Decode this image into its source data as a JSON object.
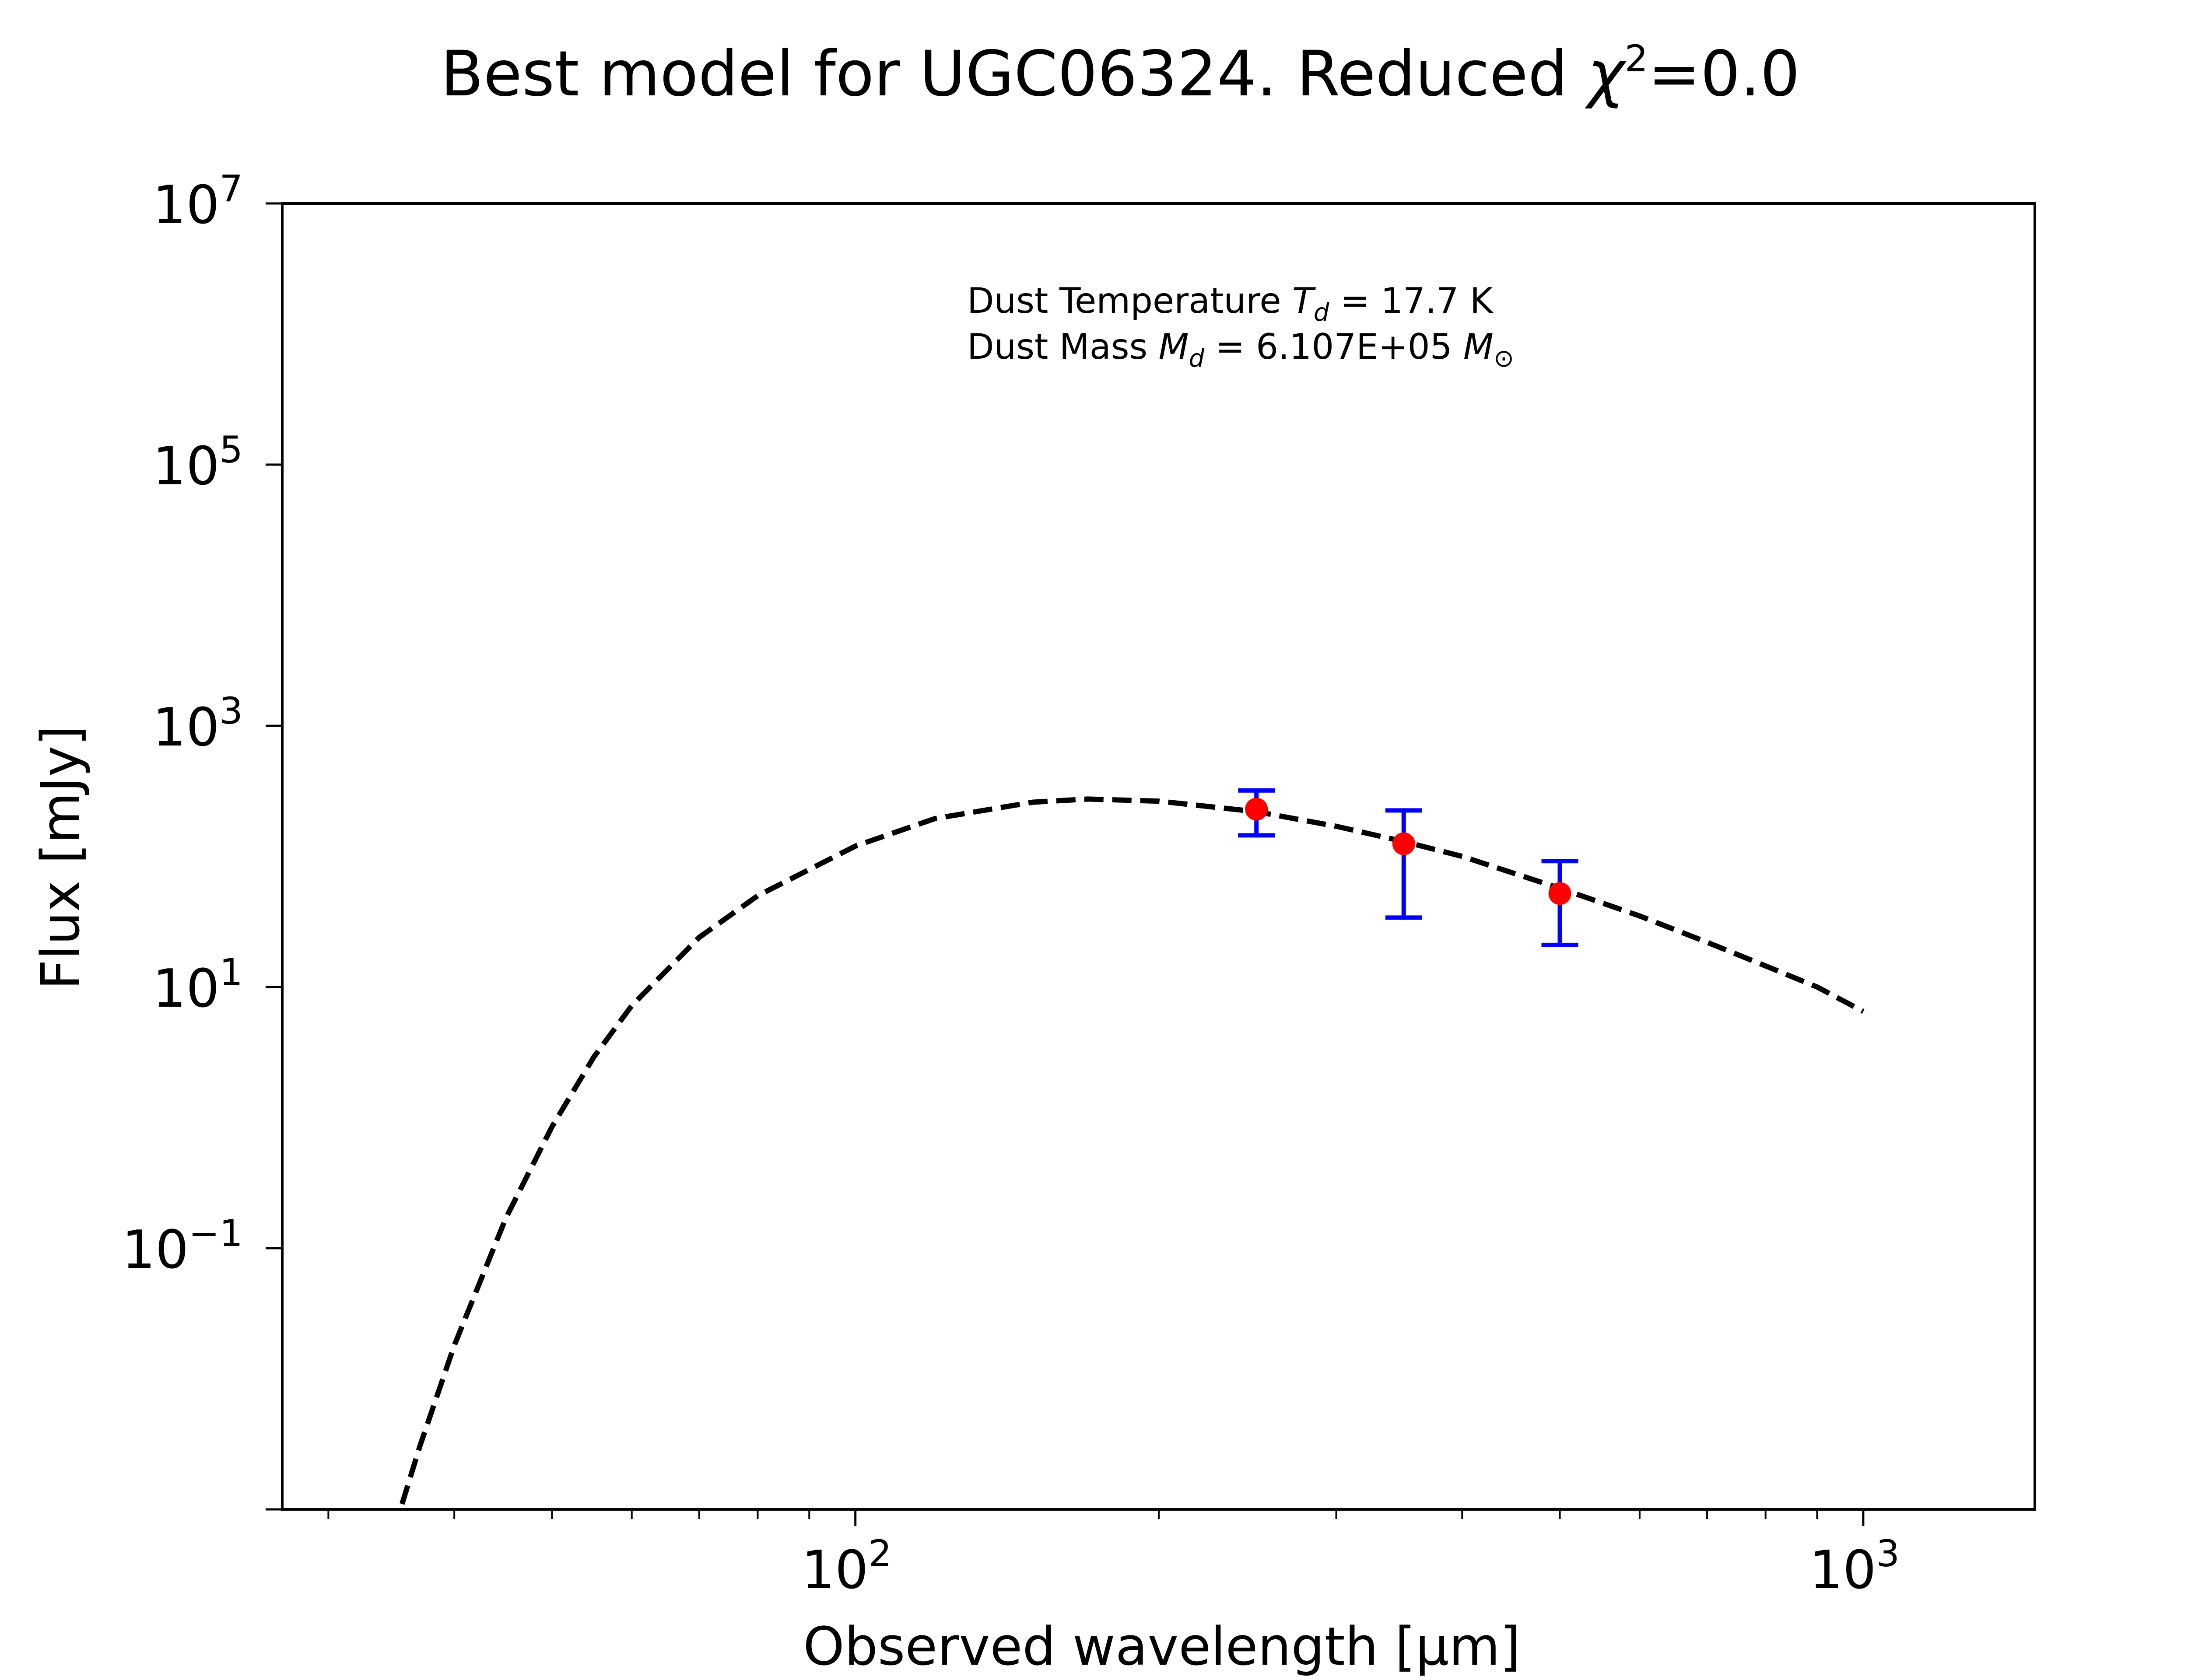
{
  "chart_data": {
    "type": "scatter",
    "title": "Best model for UGC06324. Reduced χ²=0.0",
    "title_parts": {
      "main": "Best model for UGC06324. Reduced ",
      "symbol": "χ",
      "exponent": "2",
      "tail": "=0.0"
    },
    "xlabel": "Observed wavelength [μm]",
    "ylabel": "Flux [mJy]",
    "xscale": "log",
    "yscale": "log",
    "xlim": [
      27,
      1480
    ],
    "ylim": [
      0.001,
      10000000
    ],
    "grid": false,
    "legend": "none",
    "x_ticks": [
      {
        "value": 100,
        "base": "10",
        "exp": "2"
      },
      {
        "value": 1000,
        "base": "10",
        "exp": "3"
      }
    ],
    "y_ticks": [
      {
        "value": 10000000,
        "base": "10",
        "exp": "7"
      },
      {
        "value": 100000,
        "base": "10",
        "exp": "5"
      },
      {
        "value": 1000,
        "base": "10",
        "exp": "3"
      },
      {
        "value": 10,
        "base": "10",
        "exp": "1"
      },
      {
        "value": 0.1,
        "base": "10",
        "exp": "−1"
      },
      {
        "value": 0.001,
        "base": "",
        "exp": ""
      }
    ],
    "annotations": [
      {
        "prefix": "Dust Temperature ",
        "sym": "T",
        "sub": "d",
        "suffix": " = 17.7 K"
      },
      {
        "prefix": "Dust Mass ",
        "sym": "M",
        "sub": "d",
        "suffix": " = 6.107E+05 ",
        "sym2": "M",
        "sub2": "⊙"
      }
    ],
    "series": [
      {
        "kind": "model",
        "color": "#000000",
        "x": [
          35.5,
          37,
          40,
          45,
          50,
          55,
          60,
          70,
          80,
          100,
          120,
          150,
          170,
          200,
          250,
          300,
          350,
          400,
          500,
          600,
          700,
          800,
          900,
          1000
        ],
        "y": [
          0.0011,
          0.0031,
          0.018,
          0.17,
          0.85,
          2.9,
          7.2,
          24,
          50,
          120,
          195,
          260,
          275,
          265,
          220,
          170,
          130,
          100,
          57,
          35,
          22,
          14.5,
          10,
          6.5
        ]
      },
      {
        "kind": "data",
        "color": "#ff0000",
        "error_color": "#0000ff",
        "x": [
          250,
          350,
          500
        ],
        "y": [
          230,
          125,
          52
        ],
        "y_err_low": [
          145,
          34,
          21
        ],
        "y_err_high": [
          320,
          225,
          92
        ]
      }
    ]
  }
}
